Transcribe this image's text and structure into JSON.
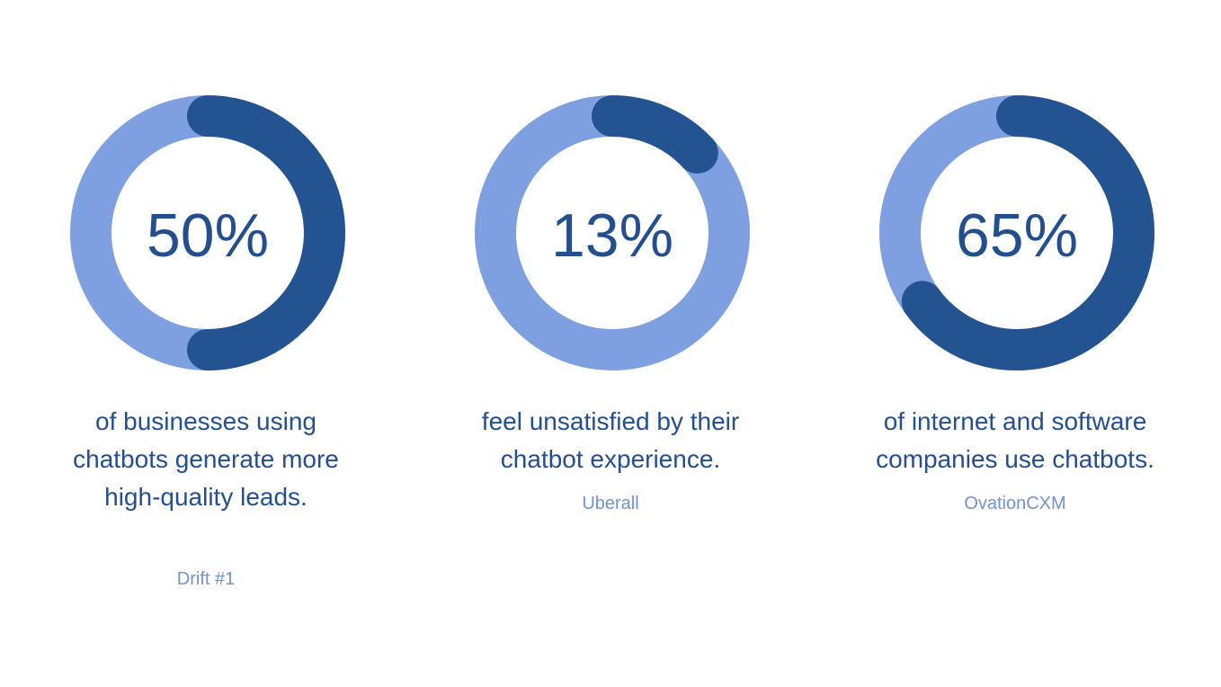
{
  "colors": {
    "track": "#7fa0e0",
    "fill": "#245392",
    "text": "#244f8f",
    "source": "#6f93d3",
    "background": "#ffffff"
  },
  "chart_data": [
    {
      "type": "pie",
      "variant": "donut",
      "value": 50,
      "max": 100,
      "center_label": "50%",
      "description": "of businesses using chatbots generate more high-quality leads.",
      "source": "Drift #1"
    },
    {
      "type": "pie",
      "variant": "donut",
      "value": 13,
      "max": 100,
      "center_label": "13%",
      "description": "feel unsatisfied by their chatbot experience.",
      "source": "Uberall"
    },
    {
      "type": "pie",
      "variant": "donut",
      "value": 65,
      "max": 100,
      "center_label": "65%",
      "description": "of internet and software companies use chatbots.",
      "source": "OvationCXM"
    }
  ]
}
